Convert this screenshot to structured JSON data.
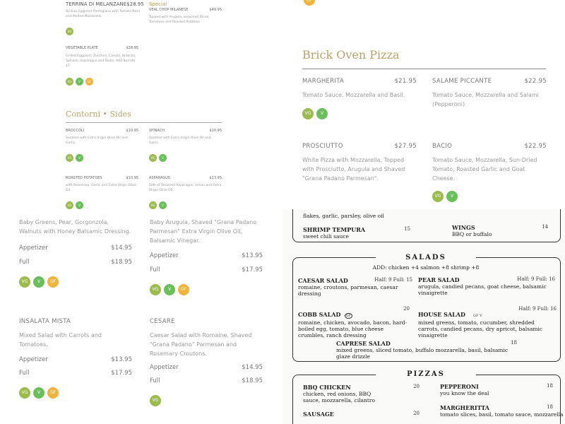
{
  "panel1": {
    "items": [
      {
        "name": "TERRINA DI MELANZANE",
        "price": "$28.95",
        "desc": "Sicilian Eggplant Parmigiana with Tomato Basil and Melted Mozzarella.",
        "icons": [
          "vg"
        ]
      },
      {
        "special": "Special",
        "name": "VEAL CHOP MILANESE",
        "price": "$49.95",
        "desc": "Topped with Arugula, seasoned Diced Tomatoes and Roasted Potatoes"
      },
      {
        "name": "VEGETABLE PLATE",
        "price": "$28.95",
        "desc": "Grilled Eggplant, Zucchini, Carrots, Broccoli, Spinach, Asparagus and Beets. Add Burrata $7",
        "icons": [
          "vg",
          "v",
          "gf"
        ]
      }
    ],
    "section_title": "Contorni • Sides",
    "sides": [
      {
        "name": "BROCCOLI",
        "price": "$10.95",
        "desc": "Sautéed with Extra Virgin Olive Oil and Garlic."
      },
      {
        "name": "SPINACH",
        "price": "$10.95",
        "desc": "Sautéed with Extra Virgin Olive Oil and Garlic."
      },
      {
        "name": "ROASTED POTATOES",
        "price": "$10.95",
        "desc": "with Rosemary, Garlic and Extra Virgin Olive Oil."
      },
      {
        "name": "ASPARAGUS",
        "price": "$13.95",
        "desc": "Side of Steamed Asparagus, lemon and Extra Virgin Olive Oil."
      }
    ],
    "icon_labels": {
      "vg": "VG",
      "v": "V",
      "gf": "GF"
    }
  },
  "panel2": {
    "title": "Brick Oven Pizza",
    "items": [
      {
        "name": "MARGHERITA",
        "price": "$21.95",
        "desc": "Tomato Sauce, Mozzarella and Basil."
      },
      {
        "name": "SALAME PICCANTE",
        "price": "$22.95",
        "desc": "Tomato Sauce, Mozzarella and Salami (Pepperoni)"
      },
      {
        "name": "PROSCIUTTO",
        "price": "$27.95",
        "desc": "White Pizza with Mozzarella, Topped with Prosciutto, Arugula and Shaved \"Grana Padano Parmesan\"."
      },
      {
        "name": "BACIO",
        "price": "$22.95",
        "desc": "Tomato Sauce, Mozzarella, Sun-Dried Tomato, Roasted Garlic and Goat Cheese."
      }
    ]
  },
  "panel3": {
    "items": [
      {
        "desc": "Baby Greens, Pear, Gorgonzola, Walnuts with Honey Balsamic Dressing.",
        "appetizer": "$14.95",
        "full": "$18.95"
      },
      {
        "desc": "Baby Arugula, Shaved \"Grana Padano Parmesan\" Extra Virgin Olive Oil, Balsamic Vinegar.",
        "appetizer": "$13.95",
        "full": "$17.95"
      },
      {
        "name": "INSALATA MISTA",
        "desc": "Mixed Salad with Carrots and Tomatoes.",
        "appetizer": "$13.95",
        "full": "$17.95"
      },
      {
        "name": "CESARE",
        "desc": "Caesar Salad with Romaine, Shaved \"Grana Padano\" Parmesan and Rosemary Croutons.",
        "appetizer": "$14.95",
        "full": "$18.95"
      }
    ],
    "appetizer_label": "Appetizer",
    "full_label": "Full"
  },
  "panel4": {
    "top_fragment": "flakes, garlic, parsley, olive oil",
    "apps": [
      {
        "name": "SHRIMP TEMPURA",
        "desc": "sweet chili sauce",
        "price": "15"
      },
      {
        "name": "WINGS",
        "desc": "BBQ or buffalo",
        "price": "14"
      }
    ],
    "salads_title": "SALADS",
    "salads_add": "ADD: chicken +4   salmon +8   shrimp +8",
    "salads": [
      {
        "name": "CAESAR SALAD",
        "price": "Half: 9  Full: 15",
        "desc": "romaine, croutons, parmesan, caesar dressing"
      },
      {
        "name": "PEAR SALAD",
        "price": "Half: 9  Full: 16",
        "desc": "arugula, candied pecans, goat cheese, balsamic vinaigrette"
      },
      {
        "name": "COBB SALAD",
        "badges": "GF",
        "price": "20",
        "desc": "romaine, chicken, avocado, bacon, hard-boiled egg, tomato, blue cheese crumbles, ranch dressing"
      },
      {
        "name": "HOUSE SALAD",
        "badges": "GF V",
        "price": "Half: 9  Full: 16",
        "desc": "mixed greens, tomato, cucumber, shredded carrots, candied pecans, dry apricot, balsamic vinaigrette"
      },
      {
        "name": "CAPRESE SALAD",
        "price": "18",
        "desc": "mixed greens, sliced tomato, buffalo mozzarella, basil, balsamic glaze drizzle"
      }
    ],
    "pizzas_title": "PIZZAS",
    "pizzas": [
      {
        "name": "BBQ CHICKEN",
        "price": "20",
        "desc": "chicken, red onions, BBQ sauce, mozzarella, cilantro"
      },
      {
        "name": "PEPPERONI",
        "price": "18",
        "desc": "you know the deal"
      },
      {
        "name": "SAUSAGE",
        "price": "20",
        "desc": ""
      },
      {
        "name": "MARGHERITTA",
        "price": "18",
        "desc": "tomato slices, basil, tomato sauce, mozzarella"
      }
    ]
  }
}
